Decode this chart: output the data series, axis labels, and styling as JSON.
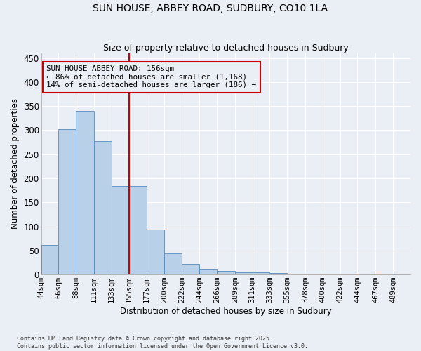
{
  "title1": "SUN HOUSE, ABBEY ROAD, SUDBURY, CO10 1LA",
  "title2": "Size of property relative to detached houses in Sudbury",
  "xlabel": "Distribution of detached houses by size in Sudbury",
  "ylabel": "Number of detached properties",
  "bar_color": "#b8d0e8",
  "bar_edge_color": "#5588bb",
  "background_color": "#eaeef5",
  "grid_color": "#ffffff",
  "annotation_box_color": "#cc0000",
  "property_line_color": "#cc0000",
  "annotation_line1": "SUN HOUSE ABBEY ROAD: 156sqm",
  "annotation_line2": "← 86% of detached houses are smaller (1,168)",
  "annotation_line3": "14% of semi-detached houses are larger (186) →",
  "bins": [
    "44sqm",
    "66sqm",
    "88sqm",
    "111sqm",
    "133sqm",
    "155sqm",
    "177sqm",
    "200sqm",
    "222sqm",
    "244sqm",
    "266sqm",
    "289sqm",
    "311sqm",
    "333sqm",
    "355sqm",
    "378sqm",
    "400sqm",
    "422sqm",
    "444sqm",
    "467sqm",
    "489sqm"
  ],
  "bin_edges": [
    44,
    66,
    88,
    111,
    133,
    155,
    177,
    200,
    222,
    244,
    266,
    289,
    311,
    333,
    355,
    378,
    400,
    422,
    444,
    467,
    489
  ],
  "values": [
    62,
    302,
    340,
    277,
    184,
    184,
    93,
    44,
    22,
    12,
    8,
    5,
    5,
    3,
    2,
    2,
    1,
    1,
    0,
    1,
    0
  ],
  "property_line_x": 155,
  "ylim": [
    0,
    460
  ],
  "yticks": [
    0,
    50,
    100,
    150,
    200,
    250,
    300,
    350,
    400,
    450
  ],
  "footnote1": "Contains HM Land Registry data © Crown copyright and database right 2025.",
  "footnote2": "Contains public sector information licensed under the Open Government Licence v3.0."
}
